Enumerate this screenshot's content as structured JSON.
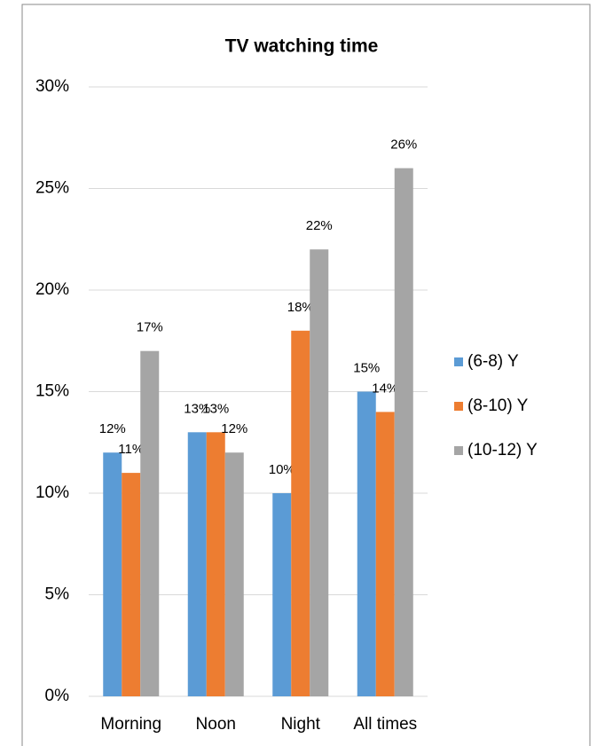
{
  "chart_data": {
    "type": "bar",
    "title": "TV watching time",
    "categories": [
      "Morning",
      "Noon",
      "Night",
      "All times"
    ],
    "series": [
      {
        "name": "(6-8) Y",
        "color": "#5b9bd5",
        "values": [
          12,
          13,
          10,
          15
        ],
        "value_labels": [
          "12%",
          "13%",
          "10%",
          "15%"
        ]
      },
      {
        "name": "(8-10) Y",
        "color": "#ed7d31",
        "values": [
          11,
          13,
          18,
          14
        ],
        "value_labels": [
          "11%",
          "13%",
          "18%",
          "14%"
        ]
      },
      {
        "name": "(10-12) Y",
        "color": "#a5a5a5",
        "values": [
          17,
          12,
          22,
          26
        ],
        "value_labels": [
          "17%",
          "12%",
          "22%",
          "26%"
        ]
      }
    ],
    "ylim": [
      0,
      30
    ],
    "yticks": [
      {
        "value": 0,
        "label": "0%"
      },
      {
        "value": 5,
        "label": "5%"
      },
      {
        "value": 10,
        "label": "10%"
      },
      {
        "value": 15,
        "label": "15%"
      },
      {
        "value": 20,
        "label": "20%"
      },
      {
        "value": 25,
        "label": "25%"
      },
      {
        "value": 30,
        "label": "30%"
      }
    ],
    "grid": true,
    "legend": "right"
  }
}
